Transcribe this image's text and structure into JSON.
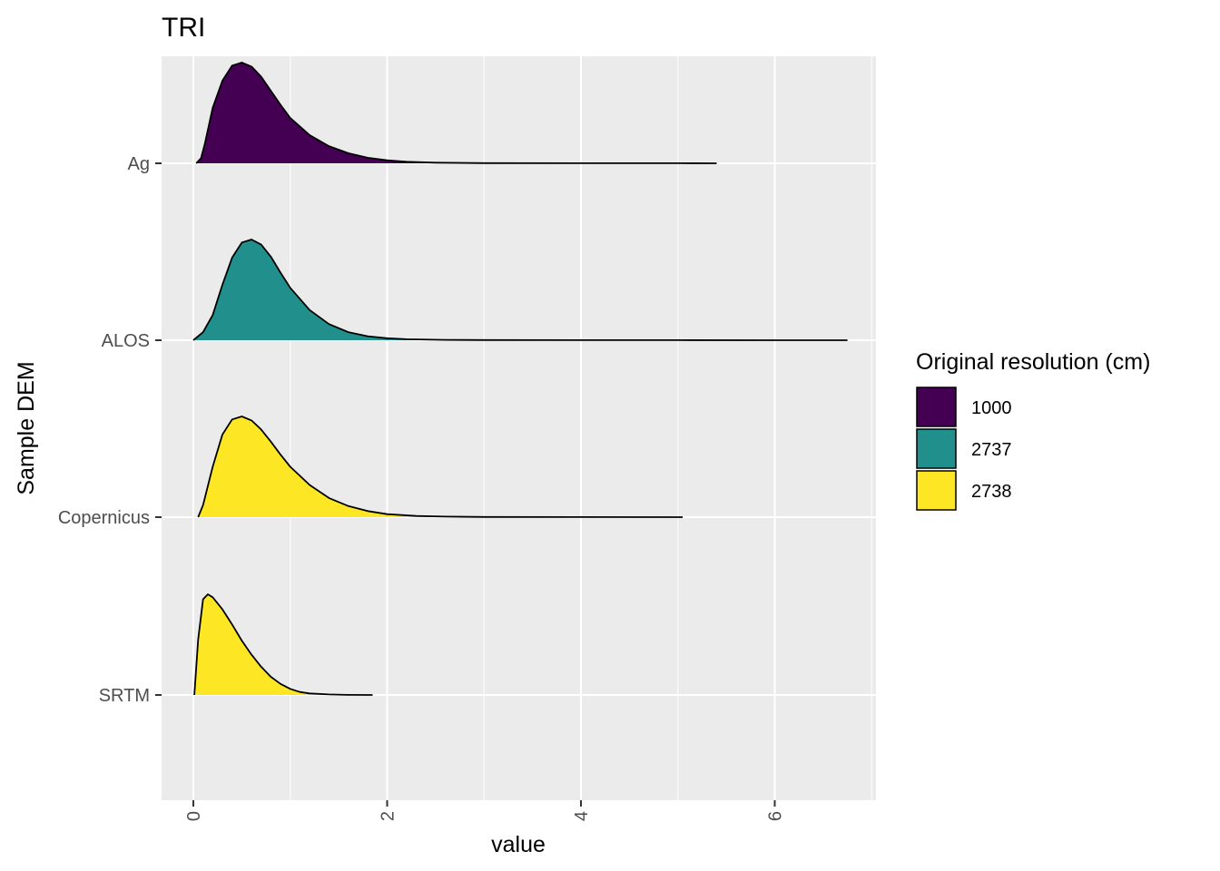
{
  "chart_data": {
    "type": "ridgeline",
    "title": "TRI",
    "xlabel": "value",
    "ylabel": "Sample DEM",
    "xlim": [
      -0.16,
      7.0
    ],
    "x_ticks": [
      0,
      2,
      4,
      6
    ],
    "x_tick_labels": [
      "0",
      "2",
      "4",
      "6"
    ],
    "grid": true,
    "legend": {
      "title": "Original resolution (cm)",
      "position": "right",
      "entries": [
        {
          "label": "1000",
          "color": "#440154"
        },
        {
          "label": "2737",
          "color": "#21908C"
        },
        {
          "label": "2738",
          "color": "#FDE725"
        }
      ]
    },
    "series": [
      {
        "category": "Ag",
        "resolution": "1000",
        "color": "#440154",
        "x": [
          0.03,
          0.08,
          0.12,
          0.2,
          0.3,
          0.4,
          0.5,
          0.6,
          0.7,
          0.8,
          0.9,
          1.0,
          1.2,
          1.4,
          1.6,
          1.8,
          2.0,
          2.2,
          2.5,
          3.0,
          4.0,
          5.0,
          5.4
        ],
        "density": [
          0.0,
          0.05,
          0.2,
          0.55,
          0.82,
          0.97,
          1.0,
          0.96,
          0.86,
          0.72,
          0.58,
          0.45,
          0.28,
          0.17,
          0.1,
          0.055,
          0.03,
          0.015,
          0.006,
          0.002,
          0.001,
          0.0005,
          0.0
        ]
      },
      {
        "category": "ALOS",
        "resolution": "2737",
        "color": "#21908C",
        "x": [
          0.0,
          0.1,
          0.2,
          0.3,
          0.4,
          0.5,
          0.6,
          0.7,
          0.8,
          0.9,
          1.0,
          1.2,
          1.4,
          1.6,
          1.8,
          2.0,
          2.2,
          2.6,
          3.0,
          4.0,
          5.0,
          6.0,
          6.75
        ],
        "density": [
          0.0,
          0.08,
          0.25,
          0.55,
          0.82,
          0.97,
          1.0,
          0.95,
          0.83,
          0.67,
          0.52,
          0.3,
          0.16,
          0.08,
          0.04,
          0.02,
          0.01,
          0.004,
          0.002,
          0.001,
          0.0005,
          0.0003,
          0.0
        ]
      },
      {
        "category": "Copernicus",
        "resolution": "2738",
        "color": "#FDE725",
        "x": [
          0.05,
          0.1,
          0.2,
          0.3,
          0.4,
          0.5,
          0.6,
          0.7,
          0.8,
          0.9,
          1.0,
          1.2,
          1.4,
          1.6,
          1.8,
          2.0,
          2.3,
          2.6,
          3.0,
          4.0,
          5.05
        ],
        "density": [
          0.0,
          0.12,
          0.5,
          0.82,
          0.97,
          1.0,
          0.96,
          0.87,
          0.75,
          0.62,
          0.5,
          0.32,
          0.19,
          0.11,
          0.06,
          0.03,
          0.012,
          0.005,
          0.002,
          0.001,
          0.0
        ]
      },
      {
        "category": "SRTM",
        "resolution": "2738",
        "color": "#FDE725",
        "x": [
          0.01,
          0.05,
          0.1,
          0.15,
          0.2,
          0.3,
          0.4,
          0.5,
          0.6,
          0.7,
          0.8,
          0.9,
          1.0,
          1.1,
          1.2,
          1.4,
          1.6,
          1.85
        ],
        "density": [
          0.0,
          0.55,
          0.95,
          1.0,
          0.97,
          0.85,
          0.7,
          0.54,
          0.4,
          0.28,
          0.18,
          0.11,
          0.06,
          0.03,
          0.015,
          0.005,
          0.001,
          0.0
        ]
      }
    ]
  }
}
